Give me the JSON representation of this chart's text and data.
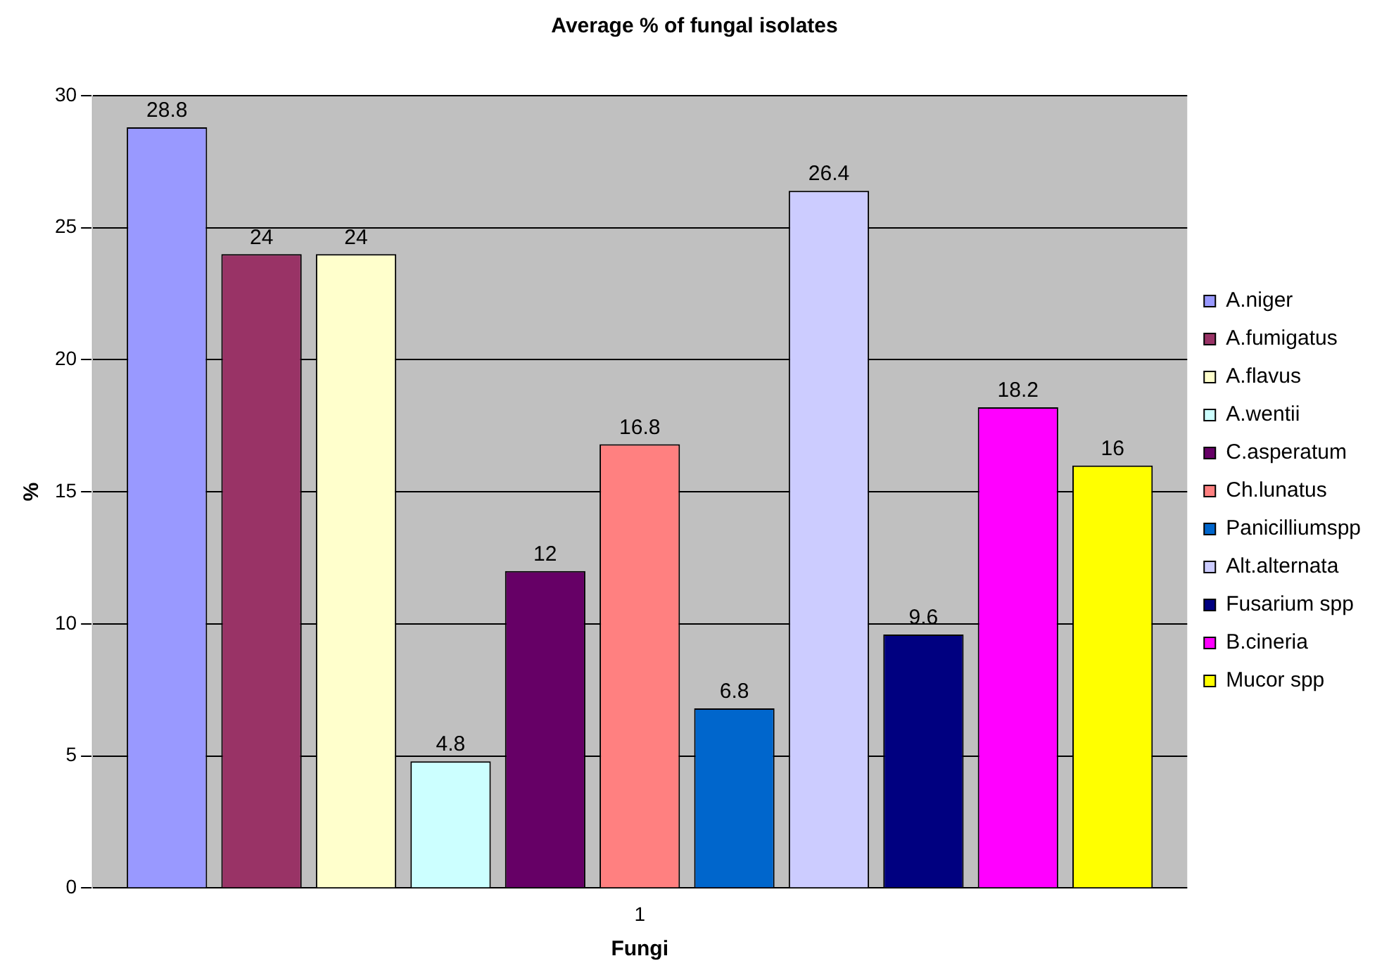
{
  "chart_data": {
    "type": "bar",
    "title": "Average % of fungal isolates",
    "xlabel": "Fungi",
    "ylabel": "%",
    "categories": [
      "1"
    ],
    "series": [
      {
        "name": "A.niger",
        "color": "#9999ff",
        "values": [
          28.8
        ]
      },
      {
        "name": "A.fumigatus",
        "color": "#993366",
        "values": [
          24
        ]
      },
      {
        "name": "A.flavus",
        "color": "#ffffcc",
        "values": [
          24
        ]
      },
      {
        "name": "A.wentii",
        "color": "#ccffff",
        "values": [
          4.8
        ]
      },
      {
        "name": "C.asperatum",
        "color": "#660066",
        "values": [
          12
        ]
      },
      {
        "name": "Ch.lunatus",
        "color": "#ff8080",
        "values": [
          16.8
        ]
      },
      {
        "name": "Panicilliumspp",
        "color": "#0066cc",
        "values": [
          6.8
        ]
      },
      {
        "name": "Alt.alternata",
        "color": "#ccccff",
        "values": [
          26.4
        ]
      },
      {
        "name": "Fusarium spp",
        "color": "#000080",
        "values": [
          9.6
        ]
      },
      {
        "name": "B.cineria",
        "color": "#ff00ff",
        "values": [
          18.2
        ]
      },
      {
        "name": "Mucor spp",
        "color": "#ffff00",
        "values": [
          16
        ]
      }
    ],
    "ylim": [
      0,
      30
    ],
    "yticks": [
      0,
      5,
      10,
      15,
      20,
      25,
      30
    ],
    "grid": "y",
    "legend": "right",
    "data_labels": true
  }
}
